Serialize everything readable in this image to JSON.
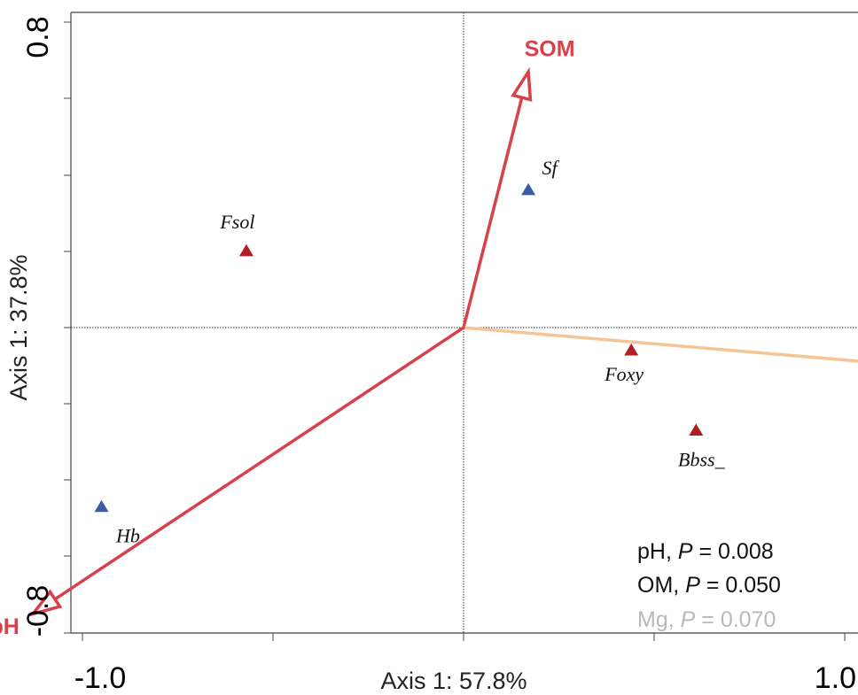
{
  "chart_data": {
    "type": "scatter",
    "title": "",
    "xlabel": "Axis 1: 57.8%",
    "ylabel": "Axis 1: 37.8%",
    "xlim": [
      -1.0,
      1.0
    ],
    "ylim": [
      -0.8,
      0.8
    ],
    "xticks": [
      "-1.0",
      "1.0"
    ],
    "yticks": [
      "0.8",
      "-0.8"
    ],
    "points": [
      {
        "label": "Sf",
        "x": 0.17,
        "y": 0.36,
        "color": "#3a5da8"
      },
      {
        "label": "Fsol",
        "x": -0.57,
        "y": 0.2,
        "color": "#b01f24"
      },
      {
        "label": "Foxy",
        "x": 0.44,
        "y": -0.06,
        "color": "#b01f24"
      },
      {
        "label": "Bbss_",
        "x": 0.61,
        "y": -0.27,
        "color": "#b01f24"
      },
      {
        "label": "Hb",
        "x": -0.95,
        "y": -0.47,
        "color": "#3a5da8"
      }
    ],
    "vectors": [
      {
        "label": "SOM",
        "x": 0.17,
        "y": 0.67,
        "color": "#d9414a"
      },
      {
        "label": "Mg",
        "x": 1.53,
        "y": -0.13,
        "color": "#f5c596"
      },
      {
        "label": "pH",
        "x": -1.13,
        "y": -0.75,
        "color": "#d9414a"
      }
    ],
    "annotations": [
      {
        "var": "pH",
        "p": "P",
        "value": "= 0.008",
        "color": "#111111"
      },
      {
        "var": "OM",
        "p": "P",
        "value": "= 0.050",
        "color": "#111111"
      },
      {
        "var": "Mg",
        "p": "P",
        "value": "= 0.070",
        "color": "#b9b9b9"
      }
    ]
  }
}
